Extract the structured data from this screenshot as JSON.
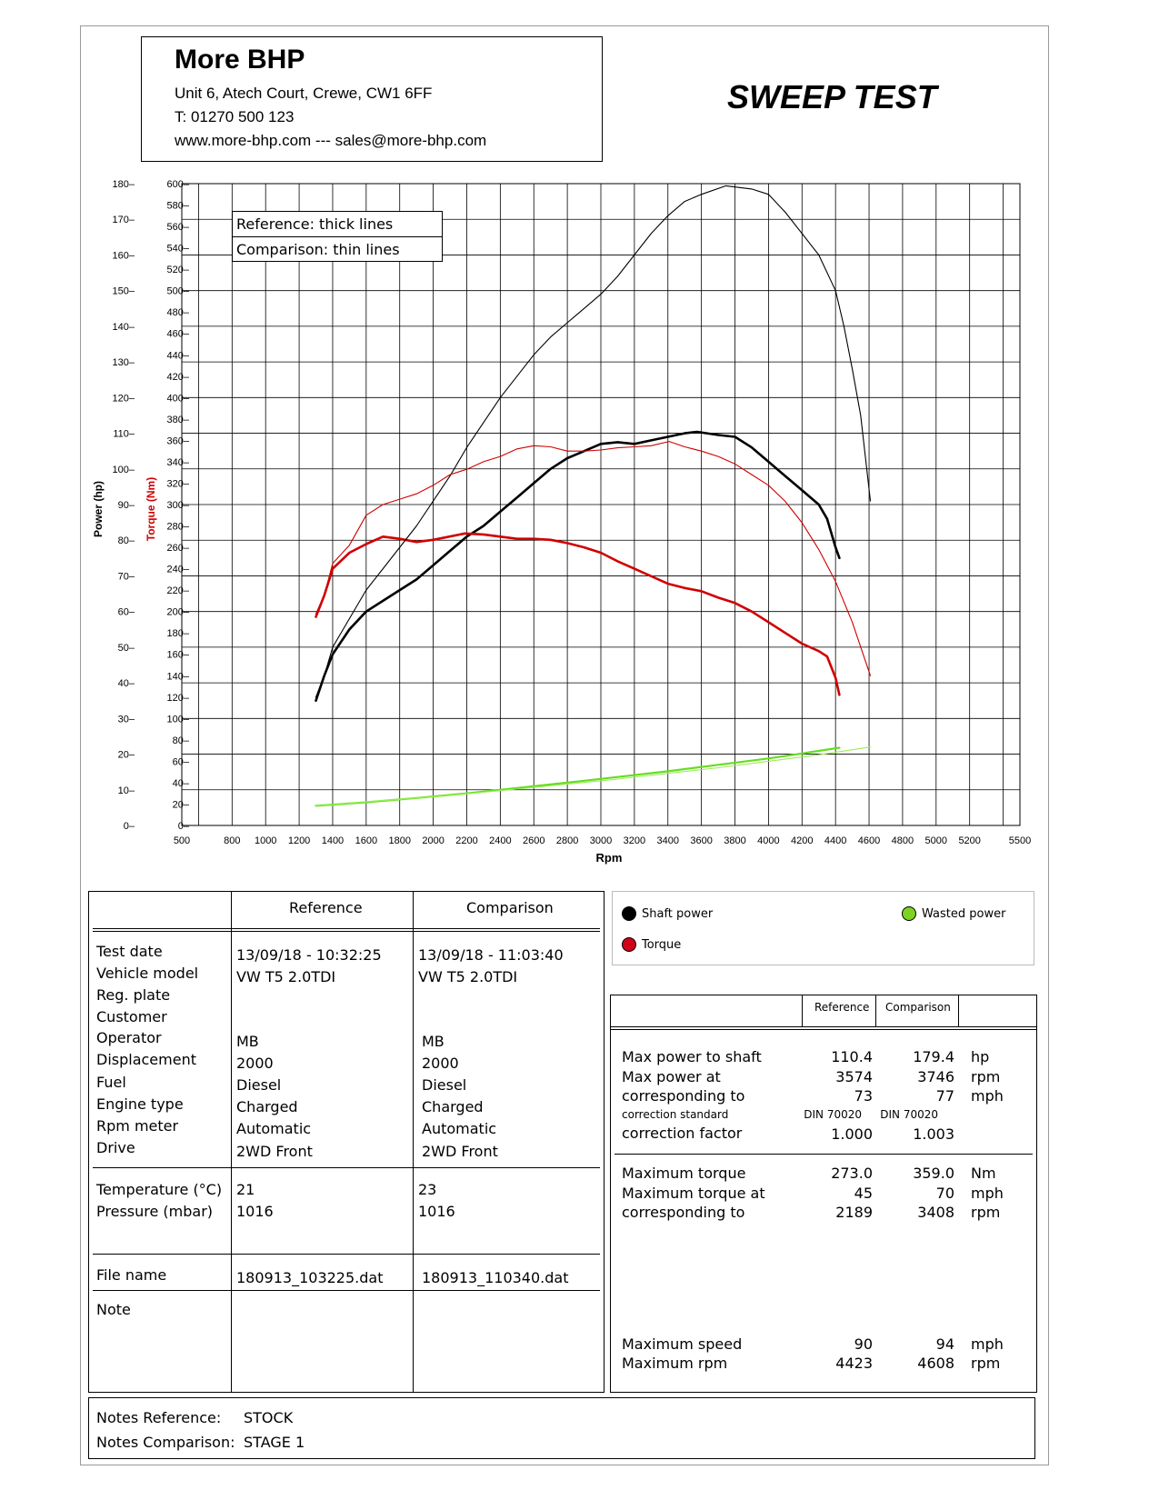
{
  "header": {
    "company": "More BHP",
    "address": "Unit 6, Atech Court, Crewe, CW1 6FF",
    "phone": "T: 01270 500 123",
    "web": "www.more-bhp.com --- sales@more-bhp.com",
    "title": "SWEEP TEST"
  },
  "chart_data": {
    "type": "line",
    "xlabel": "Rpm",
    "ylabel_power": "Power (hp)",
    "ylabel_torque": "Torque (Nm)",
    "x_ticks": [
      "500",
      "800",
      "1000",
      "1200",
      "1400",
      "1600",
      "1800",
      "2000",
      "2200",
      "2400",
      "2600",
      "2800",
      "3000",
      "3200",
      "3400",
      "3600",
      "3800",
      "4000",
      "4200",
      "4400",
      "4600",
      "4800",
      "5000",
      "5200",
      "5500"
    ],
    "power_ticks": [
      "0",
      "10",
      "20",
      "30",
      "40",
      "50",
      "60",
      "70",
      "80",
      "90",
      "100",
      "110",
      "120",
      "130",
      "140",
      "150",
      "160",
      "170",
      "180"
    ],
    "torque_ticks": [
      "0",
      "20",
      "40",
      "60",
      "80",
      "100",
      "120",
      "140",
      "160",
      "180",
      "200",
      "220",
      "240",
      "260",
      "280",
      "300",
      "320",
      "340",
      "360",
      "380",
      "400",
      "420",
      "440",
      "460",
      "480",
      "500",
      "520",
      "540",
      "560",
      "580",
      "600"
    ],
    "power_range": [
      0,
      180
    ],
    "torque_range": [
      0,
      600
    ],
    "legend_box": [
      "Reference: thick lines",
      "Comparison: thin lines"
    ],
    "series": [
      {
        "name": "Shaft power",
        "run": "Reference",
        "axis": "power",
        "color": "#000000",
        "points": [
          [
            1300,
            35
          ],
          [
            1350,
            42
          ],
          [
            1400,
            48
          ],
          [
            1500,
            55
          ],
          [
            1600,
            60
          ],
          [
            1700,
            63
          ],
          [
            1800,
            66
          ],
          [
            1900,
            69
          ],
          [
            2000,
            73
          ],
          [
            2100,
            77
          ],
          [
            2200,
            81
          ],
          [
            2300,
            84
          ],
          [
            2400,
            88
          ],
          [
            2500,
            92
          ],
          [
            2600,
            96
          ],
          [
            2700,
            100
          ],
          [
            2800,
            103
          ],
          [
            2900,
            105
          ],
          [
            3000,
            107
          ],
          [
            3100,
            107.5
          ],
          [
            3200,
            107
          ],
          [
            3300,
            108
          ],
          [
            3400,
            109
          ],
          [
            3500,
            110
          ],
          [
            3574,
            110.4
          ],
          [
            3700,
            109.5
          ],
          [
            3800,
            109
          ],
          [
            3900,
            106
          ],
          [
            4000,
            102
          ],
          [
            4100,
            98
          ],
          [
            4200,
            94
          ],
          [
            4300,
            90
          ],
          [
            4350,
            86
          ],
          [
            4400,
            78
          ],
          [
            4423,
            75
          ]
        ]
      },
      {
        "name": "Torque",
        "run": "Reference",
        "axis": "torque",
        "color": "#d00000",
        "points": [
          [
            1300,
            195
          ],
          [
            1350,
            215
          ],
          [
            1400,
            240
          ],
          [
            1500,
            255
          ],
          [
            1600,
            263
          ],
          [
            1700,
            270
          ],
          [
            1800,
            268
          ],
          [
            1900,
            265
          ],
          [
            2000,
            267
          ],
          [
            2189,
            273
          ],
          [
            2300,
            272
          ],
          [
            2400,
            270
          ],
          [
            2500,
            268
          ],
          [
            2600,
            268
          ],
          [
            2700,
            267
          ],
          [
            2800,
            264
          ],
          [
            2900,
            260
          ],
          [
            3000,
            255
          ],
          [
            3100,
            247
          ],
          [
            3200,
            240
          ],
          [
            3300,
            233
          ],
          [
            3400,
            226
          ],
          [
            3500,
            222
          ],
          [
            3600,
            219
          ],
          [
            3700,
            213
          ],
          [
            3800,
            208
          ],
          [
            3900,
            200
          ],
          [
            4000,
            190
          ],
          [
            4100,
            180
          ],
          [
            4200,
            170
          ],
          [
            4300,
            163
          ],
          [
            4350,
            158
          ],
          [
            4400,
            138
          ],
          [
            4423,
            122
          ]
        ]
      },
      {
        "name": "Wasted power",
        "run": "Reference",
        "axis": "power",
        "color": "#66dd22",
        "points": [
          [
            1300,
            5.5
          ],
          [
            1600,
            6.5
          ],
          [
            1900,
            7.7
          ],
          [
            2200,
            9.0
          ],
          [
            2500,
            10.5
          ],
          [
            2800,
            12.0
          ],
          [
            3100,
            13.6
          ],
          [
            3400,
            15.2
          ],
          [
            3700,
            17.0
          ],
          [
            4000,
            18.8
          ],
          [
            4200,
            20.2
          ],
          [
            4423,
            21.8
          ]
        ]
      },
      {
        "name": "Shaft power",
        "run": "Comparison",
        "axis": "power",
        "color": "#000000",
        "points": [
          [
            1300,
            36
          ],
          [
            1350,
            42
          ],
          [
            1400,
            50
          ],
          [
            1500,
            58
          ],
          [
            1600,
            66
          ],
          [
            1700,
            72
          ],
          [
            1800,
            78
          ],
          [
            1900,
            84
          ],
          [
            2000,
            91
          ],
          [
            2100,
            98
          ],
          [
            2200,
            106
          ],
          [
            2300,
            113
          ],
          [
            2400,
            120
          ],
          [
            2500,
            126
          ],
          [
            2600,
            132
          ],
          [
            2700,
            137
          ],
          [
            2800,
            141
          ],
          [
            2900,
            145
          ],
          [
            3000,
            149
          ],
          [
            3100,
            154
          ],
          [
            3200,
            160
          ],
          [
            3300,
            166
          ],
          [
            3400,
            171
          ],
          [
            3500,
            175
          ],
          [
            3600,
            177
          ],
          [
            3746,
            179.4
          ],
          [
            3900,
            178.5
          ],
          [
            4000,
            177
          ],
          [
            4100,
            172
          ],
          [
            4200,
            166
          ],
          [
            4300,
            160
          ],
          [
            4400,
            150
          ],
          [
            4450,
            140
          ],
          [
            4500,
            128
          ],
          [
            4550,
            115
          ],
          [
            4608,
            91
          ]
        ]
      },
      {
        "name": "Torque",
        "run": "Comparison",
        "axis": "torque",
        "color": "#d00000",
        "points": [
          [
            1300,
            198
          ],
          [
            1350,
            215
          ],
          [
            1400,
            245
          ],
          [
            1500,
            262
          ],
          [
            1600,
            290
          ],
          [
            1700,
            300
          ],
          [
            1800,
            305
          ],
          [
            1900,
            310
          ],
          [
            2000,
            318
          ],
          [
            2100,
            328
          ],
          [
            2200,
            333
          ],
          [
            2300,
            340
          ],
          [
            2400,
            345
          ],
          [
            2500,
            352
          ],
          [
            2600,
            355
          ],
          [
            2700,
            354
          ],
          [
            2800,
            350
          ],
          [
            2900,
            350
          ],
          [
            3000,
            351
          ],
          [
            3100,
            353
          ],
          [
            3200,
            354
          ],
          [
            3300,
            355
          ],
          [
            3408,
            359
          ],
          [
            3500,
            354
          ],
          [
            3600,
            350
          ],
          [
            3700,
            345
          ],
          [
            3800,
            338
          ],
          [
            3900,
            328
          ],
          [
            4000,
            318
          ],
          [
            4100,
            303
          ],
          [
            4200,
            283
          ],
          [
            4300,
            258
          ],
          [
            4400,
            228
          ],
          [
            4500,
            190
          ],
          [
            4608,
            140
          ]
        ]
      },
      {
        "name": "Wasted power",
        "run": "Comparison",
        "axis": "power",
        "color": "#99ee55",
        "points": [
          [
            1300,
            5.5
          ],
          [
            1600,
            6.6
          ],
          [
            1900,
            7.7
          ],
          [
            2200,
            8.9
          ],
          [
            2500,
            10.2
          ],
          [
            2800,
            11.6
          ],
          [
            3100,
            13.0
          ],
          [
            3400,
            14.6
          ],
          [
            3700,
            16.2
          ],
          [
            4000,
            18.0
          ],
          [
            4300,
            19.8
          ],
          [
            4608,
            22.0
          ]
        ]
      }
    ]
  },
  "legend": {
    "shaft": "Shaft power",
    "torque": "Torque",
    "wasted": "Wasted power",
    "shaft_color": "#000000",
    "torque_color": "#d0021b",
    "wasted_color": "#7ed321"
  },
  "info": {
    "col_ref": "Reference",
    "col_cmp": "Comparison",
    "labels": [
      "Test date",
      "Vehicle model",
      "Reg. plate",
      "Customer",
      "Operator",
      "Displacement",
      "Fuel",
      "Engine type",
      "Rpm meter",
      "Drive"
    ],
    "ref": {
      "test_date": "13/09/18 - 10:32:25",
      "model": "VW T5 2.0TDI",
      "operator": "MB",
      "displacement": "2000",
      "fuel": "Diesel",
      "engine": "Charged",
      "rpm_meter": "Automatic",
      "drive": "2WD Front",
      "temperature": "21",
      "pressure": "1016",
      "file": "180913_103225.dat"
    },
    "cmp": {
      "test_date": "13/09/18 - 11:03:40",
      "model": "VW T5 2.0TDI",
      "operator": "MB",
      "displacement": "2000",
      "fuel": "Diesel",
      "engine": "Charged",
      "rpm_meter": "Automatic",
      "drive": "2WD Front",
      "temperature": "23",
      "pressure": "1016",
      "file": "180913_110340.dat"
    },
    "temp_label": "Temperature (°C)",
    "pressure_label": "Pressure (mbar)",
    "file_label": "File name",
    "note_label": "Note"
  },
  "results": {
    "col_ref": "Reference",
    "col_cmp": "Comparison",
    "rows1": [
      {
        "label": "Max power to shaft",
        "ref": "110.4",
        "cmp": "179.4",
        "unit": "hp"
      },
      {
        "label": "Max power at",
        "ref": "3574",
        "cmp": "3746",
        "unit": "rpm"
      },
      {
        "label": "corresponding to",
        "ref": "73",
        "cmp": "77",
        "unit": "mph"
      }
    ],
    "corr_std_label": "correction standard",
    "corr_std_ref": "DIN 70020",
    "corr_std_cmp": "DIN 70020",
    "corr_factor_label": "correction factor",
    "corr_factor_ref": "1.000",
    "corr_factor_cmp": "1.003",
    "rows2": [
      {
        "label": "Maximum torque",
        "ref": "273.0",
        "cmp": "359.0",
        "unit": "Nm"
      },
      {
        "label": "Maximum torque at",
        "ref": "45",
        "cmp": "70",
        "unit": "mph"
      },
      {
        "label": "corresponding to",
        "ref": "2189",
        "cmp": "3408",
        "unit": "rpm"
      }
    ],
    "rows3": [
      {
        "label": "Maximum speed",
        "ref": "90",
        "cmp": "94",
        "unit": "mph"
      },
      {
        "label": "Maximum rpm",
        "ref": "4423",
        "cmp": "4608",
        "unit": "rpm"
      }
    ]
  },
  "notes": {
    "ref_label": "Notes Reference:",
    "ref_value": "STOCK",
    "cmp_label": "Notes Comparison:",
    "cmp_value": "STAGE 1"
  }
}
